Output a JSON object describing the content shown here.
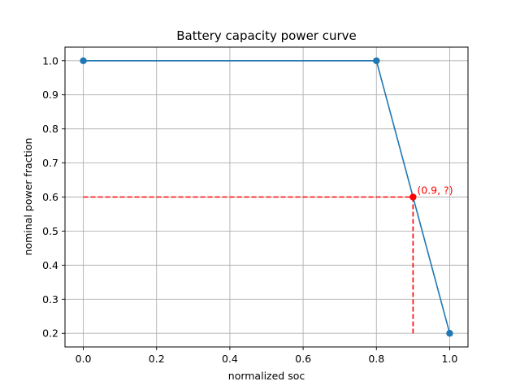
{
  "chart_data": {
    "type": "line",
    "title": "Battery capacity power curve",
    "xlabel": "normalized soc",
    "ylabel": "nominal power fraction",
    "xlim": [
      -0.05,
      1.05
    ],
    "ylim": [
      0.16,
      1.04
    ],
    "x_ticks": [
      0.0,
      0.2,
      0.4,
      0.6,
      0.8,
      1.0
    ],
    "x_tick_labels": [
      "0.0",
      "0.2",
      "0.4",
      "0.6",
      "0.8",
      "1.0"
    ],
    "y_ticks": [
      0.2,
      0.3,
      0.4,
      0.5,
      0.6,
      0.7,
      0.8,
      0.9,
      1.0
    ],
    "y_tick_labels": [
      "0.2",
      "0.3",
      "0.4",
      "0.5",
      "0.6",
      "0.7",
      "0.8",
      "0.9",
      "1.0"
    ],
    "grid": true,
    "series": [
      {
        "x": [
          0.0,
          0.8,
          1.0
        ],
        "y": [
          1.0,
          1.0,
          0.2
        ],
        "color": "#1f77b4",
        "marker": "circle"
      }
    ],
    "highlight": {
      "x": 0.9,
      "y": 0.6,
      "label": "(0.9, ?)",
      "color": "#ff0000",
      "guide_lines": "dashed"
    }
  }
}
